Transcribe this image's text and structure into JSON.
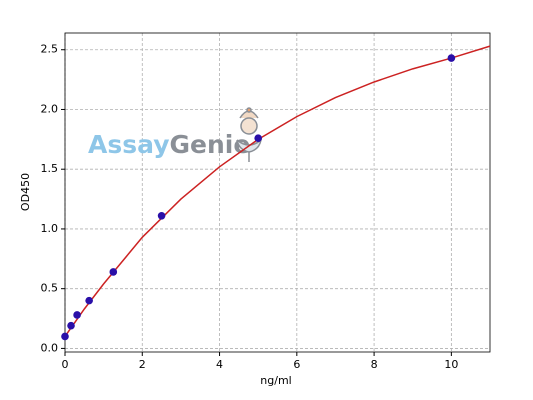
{
  "chart_data": {
    "type": "scatter",
    "xlabel": "ng/ml",
    "ylabel": "OD450",
    "watermark": {
      "first": "Assay",
      "second": "Genie",
      "first_color": "#8ec6e8",
      "second_color": "#8a8f96"
    },
    "points": {
      "x": [
        0,
        0.156,
        0.313,
        0.625,
        1.25,
        2.5,
        5,
        10
      ],
      "y": [
        0.1,
        0.19,
        0.28,
        0.4,
        0.64,
        1.11,
        1.76,
        2.43
      ],
      "color": "#2a0fa8"
    },
    "curve": {
      "x": [
        0,
        0.5,
        1,
        2,
        3,
        4,
        5,
        6,
        7,
        8,
        9,
        10,
        11
      ],
      "y": [
        0.1,
        0.33,
        0.54,
        0.93,
        1.25,
        1.52,
        1.75,
        1.94,
        2.1,
        2.23,
        2.34,
        2.43,
        2.53
      ],
      "color": "#cc2222"
    },
    "xlim": [
      0,
      11
    ],
    "ylim": [
      -0.03,
      2.64
    ],
    "xticks": [
      0,
      2,
      4,
      6,
      8,
      10
    ],
    "yticks": [
      {
        "value": 0,
        "label": "0.0"
      },
      0.5,
      {
        "value": 1,
        "label": "1.0"
      },
      1.5,
      {
        "value": 2,
        "label": "2.0"
      },
      2.5
    ],
    "grid": true
  }
}
